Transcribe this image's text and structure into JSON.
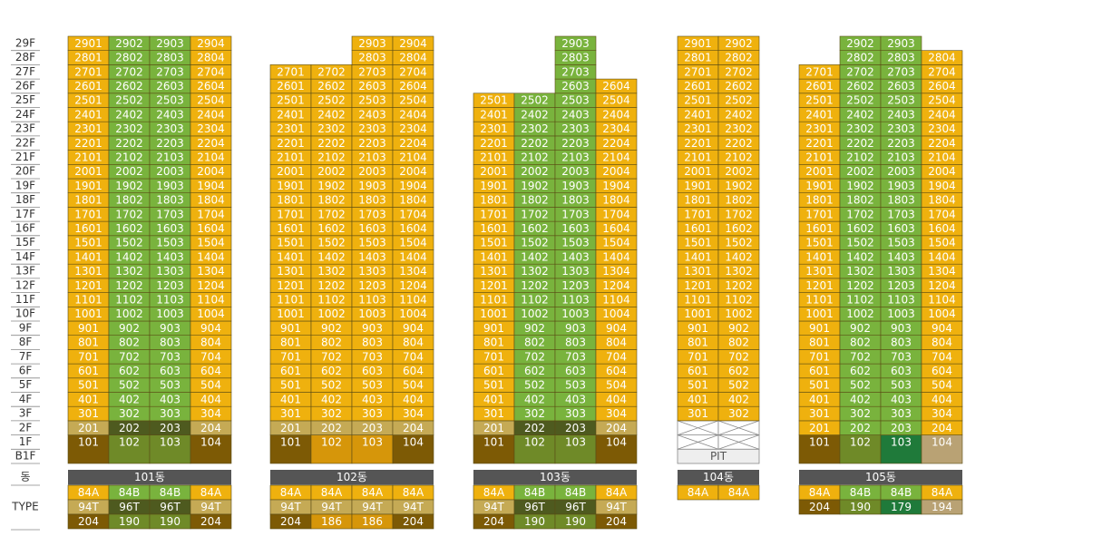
{
  "floor_labels": [
    "29F",
    "28F",
    "27F",
    "26F",
    "25F",
    "24F",
    "23F",
    "22F",
    "21F",
    "20F",
    "19F",
    "18F",
    "17F",
    "16F",
    "15F",
    "14F",
    "13F",
    "12F",
    "11F",
    "10F",
    "9F",
    "8F",
    "7F",
    "6F",
    "5F",
    "4F",
    "3F",
    "2F",
    "1F",
    "B1F"
  ],
  "dong_label": "동",
  "type_label": "TYPE",
  "buildings": [
    {
      "name": "101동",
      "columns": [
        {
          "color": "#efb10e",
          "color_2f": "#c5aa55",
          "color_1f": "#7d5a05",
          "units": [
            "101",
            "201",
            "301",
            "401",
            "501",
            "601",
            "701",
            "801",
            "901",
            "1001",
            "1101",
            "1201",
            "1301",
            "1401",
            "1501",
            "1601",
            "1701",
            "1801",
            "1901",
            "2001",
            "2101",
            "2201",
            "2301",
            "2401",
            "2501",
            "2601",
            "2701",
            "2801",
            "2901"
          ]
        },
        {
          "color": "#79b33d",
          "color_2f": "#4e5a1f",
          "color_1f": "#6f8a28",
          "units": [
            "102",
            "202",
            "302",
            "402",
            "502",
            "602",
            "702",
            "802",
            "902",
            "1002",
            "1102",
            "1202",
            "1302",
            "1402",
            "1502",
            "1602",
            "1702",
            "1802",
            "1902",
            "2002",
            "2102",
            "2202",
            "2302",
            "2402",
            "2502",
            "2602",
            "2702",
            "2802",
            "2902"
          ]
        },
        {
          "color": "#79b33d",
          "color_2f": "#4e5a1f",
          "color_1f": "#6f8a28",
          "units": [
            "103",
            "203",
            "303",
            "403",
            "503",
            "603",
            "703",
            "803",
            "903",
            "1003",
            "1103",
            "1203",
            "1303",
            "1403",
            "1503",
            "1603",
            "1703",
            "1803",
            "1903",
            "2003",
            "2103",
            "2203",
            "2303",
            "2403",
            "2503",
            "2603",
            "2703",
            "2803",
            "2903"
          ]
        },
        {
          "color": "#efb10e",
          "color_2f": "#c5aa55",
          "color_1f": "#7d5a05",
          "units": [
            "104",
            "204",
            "304",
            "404",
            "504",
            "604",
            "704",
            "804",
            "904",
            "1004",
            "1104",
            "1204",
            "1304",
            "1404",
            "1504",
            "1604",
            "1704",
            "1804",
            "1904",
            "2004",
            "2104",
            "2204",
            "2304",
            "2404",
            "2504",
            "2604",
            "2704",
            "2804",
            "2904"
          ]
        }
      ],
      "types": [
        {
          "cells": [
            "84A",
            "84B",
            "84B",
            "84A"
          ],
          "colors": [
            "#efb10e",
            "#79b33d",
            "#79b33d",
            "#efb10e"
          ]
        },
        {
          "cells": [
            "94T",
            "96T",
            "96T",
            "94T"
          ],
          "colors": [
            "#c5aa55",
            "#4e5a1f",
            "#4e5a1f",
            "#c5aa55"
          ]
        },
        {
          "cells": [
            "204",
            "190",
            "190",
            "204"
          ],
          "colors": [
            "#7d5a05",
            "#6f8a28",
            "#6f8a28",
            "#7d5a05"
          ]
        }
      ]
    },
    {
      "name": "102동",
      "columns": [
        {
          "color": "#efb10e",
          "color_2f": "#c5aa55",
          "color_1f": "#7d5a05",
          "units": [
            "101",
            "201",
            "301",
            "401",
            "501",
            "601",
            "701",
            "801",
            "901",
            "1001",
            "1101",
            "1201",
            "1301",
            "1401",
            "1501",
            "1601",
            "1701",
            "1801",
            "1901",
            "2001",
            "2101",
            "2201",
            "2301",
            "2401",
            "2501",
            "2601",
            "2701"
          ]
        },
        {
          "color": "#efb10e",
          "color_2f": "#c5aa55",
          "color_1f": "#d6960a",
          "units": [
            "102",
            "202",
            "302",
            "402",
            "502",
            "602",
            "702",
            "802",
            "902",
            "1002",
            "1102",
            "1202",
            "1302",
            "1402",
            "1502",
            "1602",
            "1702",
            "1802",
            "1902",
            "2002",
            "2102",
            "2202",
            "2302",
            "2402",
            "2502",
            "2602",
            "2702"
          ]
        },
        {
          "color": "#efb10e",
          "color_2f": "#c5aa55",
          "color_1f": "#d6960a",
          "units": [
            "103",
            "203",
            "303",
            "403",
            "503",
            "603",
            "703",
            "803",
            "903",
            "1003",
            "1103",
            "1203",
            "1303",
            "1403",
            "1503",
            "1603",
            "1703",
            "1803",
            "1903",
            "2003",
            "2103",
            "2203",
            "2303",
            "2403",
            "2503",
            "2603",
            "2703",
            "2803",
            "2903"
          ]
        },
        {
          "color": "#efb10e",
          "color_2f": "#c5aa55",
          "color_1f": "#7d5a05",
          "units": [
            "104",
            "204",
            "304",
            "404",
            "504",
            "604",
            "704",
            "804",
            "904",
            "1004",
            "1104",
            "1204",
            "1304",
            "1404",
            "1504",
            "1604",
            "1704",
            "1804",
            "1904",
            "2004",
            "2104",
            "2204",
            "2304",
            "2404",
            "2504",
            "2604",
            "2704",
            "2804",
            "2904"
          ]
        }
      ],
      "types": [
        {
          "cells": [
            "84A",
            "84A",
            "84A",
            "84A"
          ],
          "colors": [
            "#efb10e",
            "#efb10e",
            "#efb10e",
            "#efb10e"
          ]
        },
        {
          "cells": [
            "94T",
            "94T",
            "94T",
            "94T"
          ],
          "colors": [
            "#c5aa55",
            "#c5aa55",
            "#c5aa55",
            "#c5aa55"
          ]
        },
        {
          "cells": [
            "204",
            "186",
            "186",
            "204"
          ],
          "colors": [
            "#7d5a05",
            "#d6960a",
            "#d6960a",
            "#7d5a05"
          ]
        }
      ]
    },
    {
      "name": "103동",
      "columns": [
        {
          "color": "#efb10e",
          "color_2f": "#c5aa55",
          "color_1f": "#7d5a05",
          "units": [
            "101",
            "201",
            "301",
            "401",
            "501",
            "601",
            "701",
            "801",
            "901",
            "1001",
            "1101",
            "1201",
            "1301",
            "1401",
            "1501",
            "1601",
            "1701",
            "1801",
            "1901",
            "2001",
            "2101",
            "2201",
            "2301",
            "2401",
            "2501"
          ]
        },
        {
          "color": "#79b33d",
          "color_2f": "#4e5a1f",
          "color_1f": "#6f8a28",
          "units": [
            "102",
            "202",
            "302",
            "402",
            "502",
            "602",
            "702",
            "802",
            "902",
            "1002",
            "1102",
            "1202",
            "1302",
            "1402",
            "1502",
            "1602",
            "1702",
            "1802",
            "1902",
            "2002",
            "2102",
            "2202",
            "2302",
            "2402",
            "2502"
          ]
        },
        {
          "color": "#79b33d",
          "color_2f": "#4e5a1f",
          "color_1f": "#6f8a28",
          "units": [
            "103",
            "203",
            "303",
            "403",
            "503",
            "603",
            "703",
            "803",
            "903",
            "1003",
            "1103",
            "1203",
            "1303",
            "1403",
            "1503",
            "1603",
            "1703",
            "1803",
            "1903",
            "2003",
            "2103",
            "2203",
            "2303",
            "2403",
            "2503",
            "2603",
            "2703",
            "2803",
            "2903"
          ]
        },
        {
          "color": "#efb10e",
          "color_2f": "#c5aa55",
          "color_1f": "#7d5a05",
          "units": [
            "104",
            "204",
            "304",
            "404",
            "504",
            "604",
            "704",
            "804",
            "904",
            "1004",
            "1104",
            "1204",
            "1304",
            "1404",
            "1504",
            "1604",
            "1704",
            "1804",
            "1904",
            "2004",
            "2104",
            "2204",
            "2304",
            "2404",
            "2504",
            "2604"
          ]
        }
      ],
      "types": [
        {
          "cells": [
            "84A",
            "84B",
            "84B",
            "84A"
          ],
          "colors": [
            "#efb10e",
            "#79b33d",
            "#79b33d",
            "#efb10e"
          ]
        },
        {
          "cells": [
            "94T",
            "96T",
            "96T",
            "94T"
          ],
          "colors": [
            "#c5aa55",
            "#4e5a1f",
            "#4e5a1f",
            "#c5aa55"
          ]
        },
        {
          "cells": [
            "204",
            "190",
            "190",
            "204"
          ],
          "colors": [
            "#7d5a05",
            "#6f8a28",
            "#6f8a28",
            "#7d5a05"
          ]
        }
      ]
    },
    {
      "name": "104동",
      "pit": "PIT",
      "columns": [
        {
          "color": "#efb10e",
          "color_2f": "#efb10e",
          "color_1f": "#efb10e",
          "units": [
            null,
            null,
            "301",
            "401",
            "501",
            "601",
            "701",
            "801",
            "901",
            "1001",
            "1101",
            "1201",
            "1301",
            "1401",
            "1501",
            "1601",
            "1701",
            "1801",
            "1901",
            "2001",
            "2101",
            "2201",
            "2301",
            "2401",
            "2501",
            "2601",
            "2701",
            "2801",
            "2901"
          ]
        },
        {
          "color": "#efb10e",
          "color_2f": "#efb10e",
          "color_1f": "#efb10e",
          "units": [
            null,
            null,
            "302",
            "402",
            "502",
            "602",
            "702",
            "802",
            "902",
            "1002",
            "1102",
            "1202",
            "1302",
            "1402",
            "1502",
            "1602",
            "1702",
            "1802",
            "1902",
            "2002",
            "2102",
            "2202",
            "2302",
            "2402",
            "2502",
            "2602",
            "2702",
            "2802",
            "2902"
          ]
        }
      ],
      "types": [
        {
          "cells": [
            "84A",
            "84A"
          ],
          "colors": [
            "#efb10e",
            "#efb10e"
          ]
        }
      ]
    },
    {
      "name": "105동",
      "columns": [
        {
          "color": "#efb10e",
          "color_2f": "#efb10e",
          "color_1f": "#7d5a05",
          "units": [
            "101",
            "201",
            "301",
            "401",
            "501",
            "601",
            "701",
            "801",
            "901",
            "1001",
            "1101",
            "1201",
            "1301",
            "1401",
            "1501",
            "1601",
            "1701",
            "1801",
            "1901",
            "2001",
            "2101",
            "2201",
            "2301",
            "2401",
            "2501",
            "2601",
            "2701"
          ]
        },
        {
          "color": "#79b33d",
          "color_2f": "#79b33d",
          "color_1f": "#6f8a28",
          "units": [
            "102",
            "202",
            "302",
            "402",
            "502",
            "602",
            "702",
            "802",
            "902",
            "1002",
            "1102",
            "1202",
            "1302",
            "1402",
            "1502",
            "1602",
            "1702",
            "1802",
            "1902",
            "2002",
            "2102",
            "2202",
            "2302",
            "2402",
            "2502",
            "2602",
            "2702",
            "2802",
            "2902"
          ]
        },
        {
          "color": "#79b33d",
          "color_2f": "#79b33d",
          "color_1f": "#1f7a3a",
          "units": [
            "103",
            "203",
            "303",
            "403",
            "503",
            "603",
            "703",
            "803",
            "903",
            "1003",
            "1103",
            "1203",
            "1303",
            "1403",
            "1503",
            "1603",
            "1703",
            "1803",
            "1903",
            "2003",
            "2103",
            "2203",
            "2303",
            "2403",
            "2503",
            "2603",
            "2703",
            "2803",
            "2903"
          ]
        },
        {
          "color": "#efb10e",
          "color_2f": "#efb10e",
          "color_1f": "#b9a274",
          "units": [
            "104",
            "204",
            "304",
            "404",
            "504",
            "604",
            "704",
            "804",
            "904",
            "1004",
            "1104",
            "1204",
            "1304",
            "1404",
            "1504",
            "1604",
            "1704",
            "1804",
            "1904",
            "2004",
            "2104",
            "2204",
            "2304",
            "2404",
            "2504",
            "2604",
            "2704",
            "2804"
          ]
        }
      ],
      "types": [
        {
          "cells": [
            "84A",
            "84B",
            "84B",
            "84A"
          ],
          "colors": [
            "#efb10e",
            "#79b33d",
            "#79b33d",
            "#efb10e"
          ]
        },
        {
          "cells": [
            "204",
            "190",
            "179",
            "194"
          ],
          "colors": [
            "#7d5a05",
            "#6f8a28",
            "#1f7a3a",
            "#b9a274"
          ]
        }
      ]
    }
  ]
}
